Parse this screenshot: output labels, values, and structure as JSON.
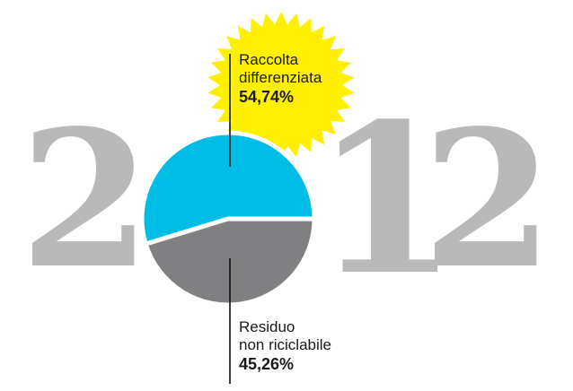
{
  "year": [
    "2",
    "1",
    "2"
  ],
  "chart_data": {
    "type": "pie",
    "title": "",
    "slices": [
      {
        "label_lines": [
          "Raccolta",
          "differenziata"
        ],
        "value": 54.74,
        "value_label": "54,74%",
        "color": "#00bde7"
      },
      {
        "label_lines": [
          "Residuo",
          "non riciclabile"
        ],
        "value": 45.26,
        "value_label": "45,26%",
        "color": "#808083"
      }
    ]
  },
  "colors": {
    "starburst": "#fff000",
    "digits": "#b9b9b9",
    "leaf": "#2f9c2a"
  }
}
